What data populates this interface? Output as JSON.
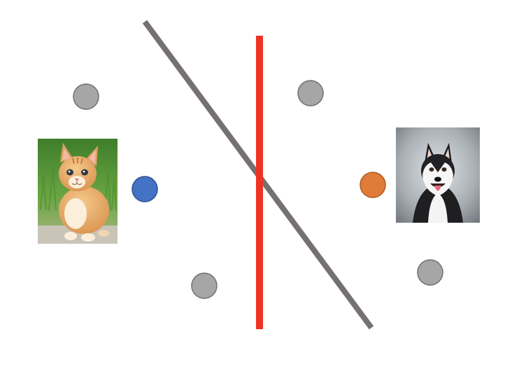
{
  "diagram": {
    "background_color": "#ffffff",
    "lines": [
      {
        "name": "gray-separator-line",
        "color": "#767171"
      },
      {
        "name": "red-separator-line",
        "color": "#ee3322"
      }
    ],
    "points": [
      {
        "name": "gray-point",
        "color": "#a6a6a6",
        "stroke": "#6f6f6f"
      },
      {
        "name": "blue-point",
        "color": "#4472c4",
        "stroke": "#2f528f"
      },
      {
        "name": "orange-point",
        "color": "#e07b39",
        "stroke": "#ae5a21"
      }
    ],
    "images": [
      {
        "name": "cat-photo",
        "subject": "cat"
      },
      {
        "name": "dog-photo",
        "subject": "husky dog"
      }
    ]
  }
}
